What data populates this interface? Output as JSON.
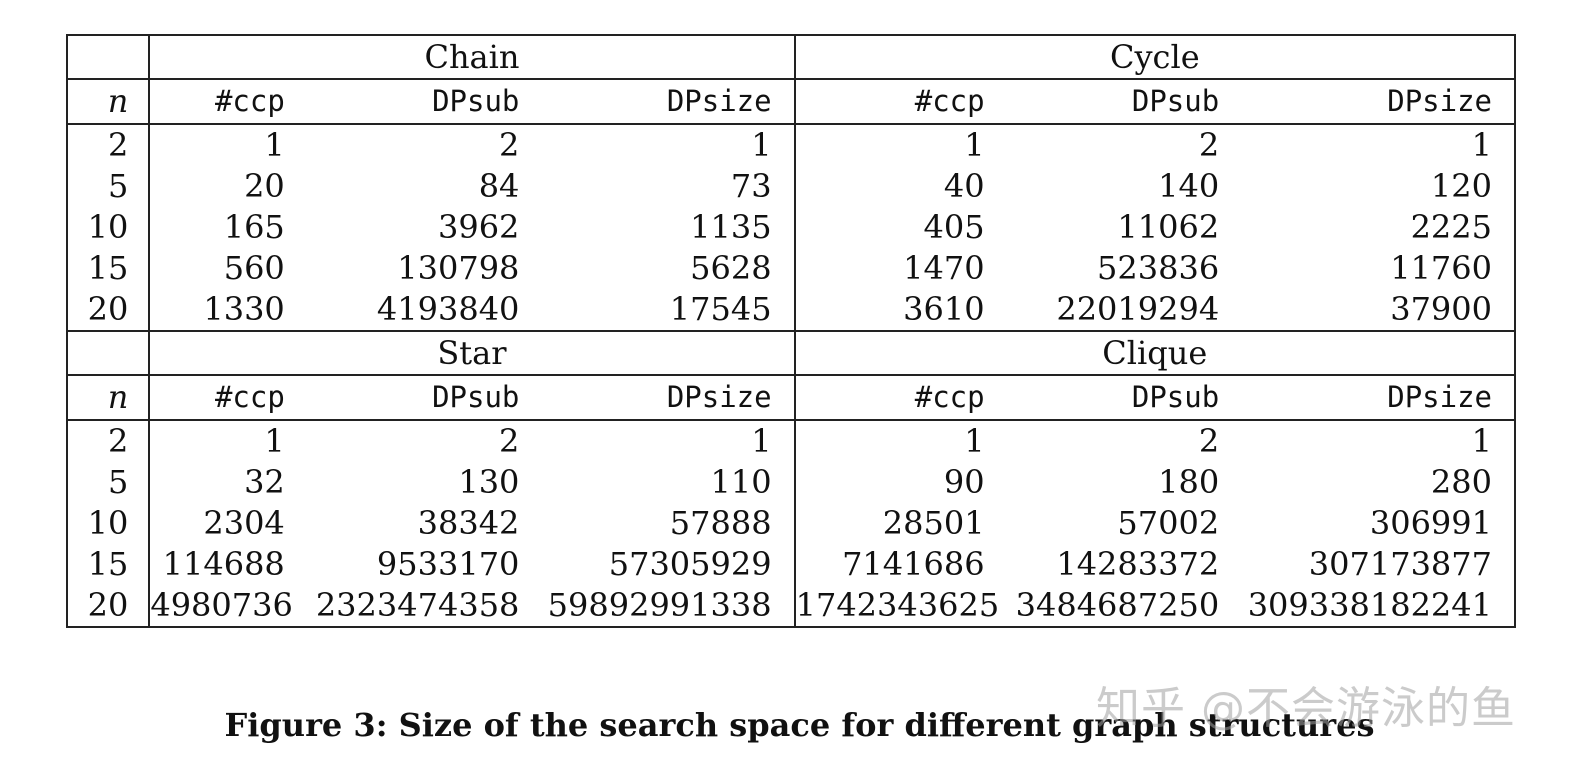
{
  "table": {
    "n_label": "n",
    "columns": [
      "#ccp",
      "DPsub",
      "DPsize"
    ],
    "blocks": [
      {
        "left_name": "Chain",
        "right_name": "Cycle",
        "rows": [
          {
            "n": "2",
            "left": [
              "1",
              "2",
              "1"
            ],
            "right": [
              "1",
              "2",
              "1"
            ]
          },
          {
            "n": "5",
            "left": [
              "20",
              "84",
              "73"
            ],
            "right": [
              "40",
              "140",
              "120"
            ]
          },
          {
            "n": "10",
            "left": [
              "165",
              "3962",
              "1135"
            ],
            "right": [
              "405",
              "11062",
              "2225"
            ]
          },
          {
            "n": "15",
            "left": [
              "560",
              "130798",
              "5628"
            ],
            "right": [
              "1470",
              "523836",
              "11760"
            ]
          },
          {
            "n": "20",
            "left": [
              "1330",
              "4193840",
              "17545"
            ],
            "right": [
              "3610",
              "22019294",
              "37900"
            ]
          }
        ]
      },
      {
        "left_name": "Star",
        "right_name": "Clique",
        "rows": [
          {
            "n": "2",
            "left": [
              "1",
              "2",
              "1"
            ],
            "right": [
              "1",
              "2",
              "1"
            ]
          },
          {
            "n": "5",
            "left": [
              "32",
              "130",
              "110"
            ],
            "right": [
              "90",
              "180",
              "280"
            ]
          },
          {
            "n": "10",
            "left": [
              "2304",
              "38342",
              "57888"
            ],
            "right": [
              "28501",
              "57002",
              "306991"
            ]
          },
          {
            "n": "15",
            "left": [
              "114688",
              "9533170",
              "57305929"
            ],
            "right": [
              "7141686",
              "14283372",
              "307173877"
            ]
          },
          {
            "n": "20",
            "left": [
              "4980736",
              "2323474358",
              "59892991338"
            ],
            "right": [
              "1742343625",
              "3484687250",
              "309338182241"
            ]
          }
        ]
      }
    ]
  },
  "caption": "Figure 3: Size of the search space for different graph structures",
  "watermark": "知乎 @不会游泳的鱼"
}
